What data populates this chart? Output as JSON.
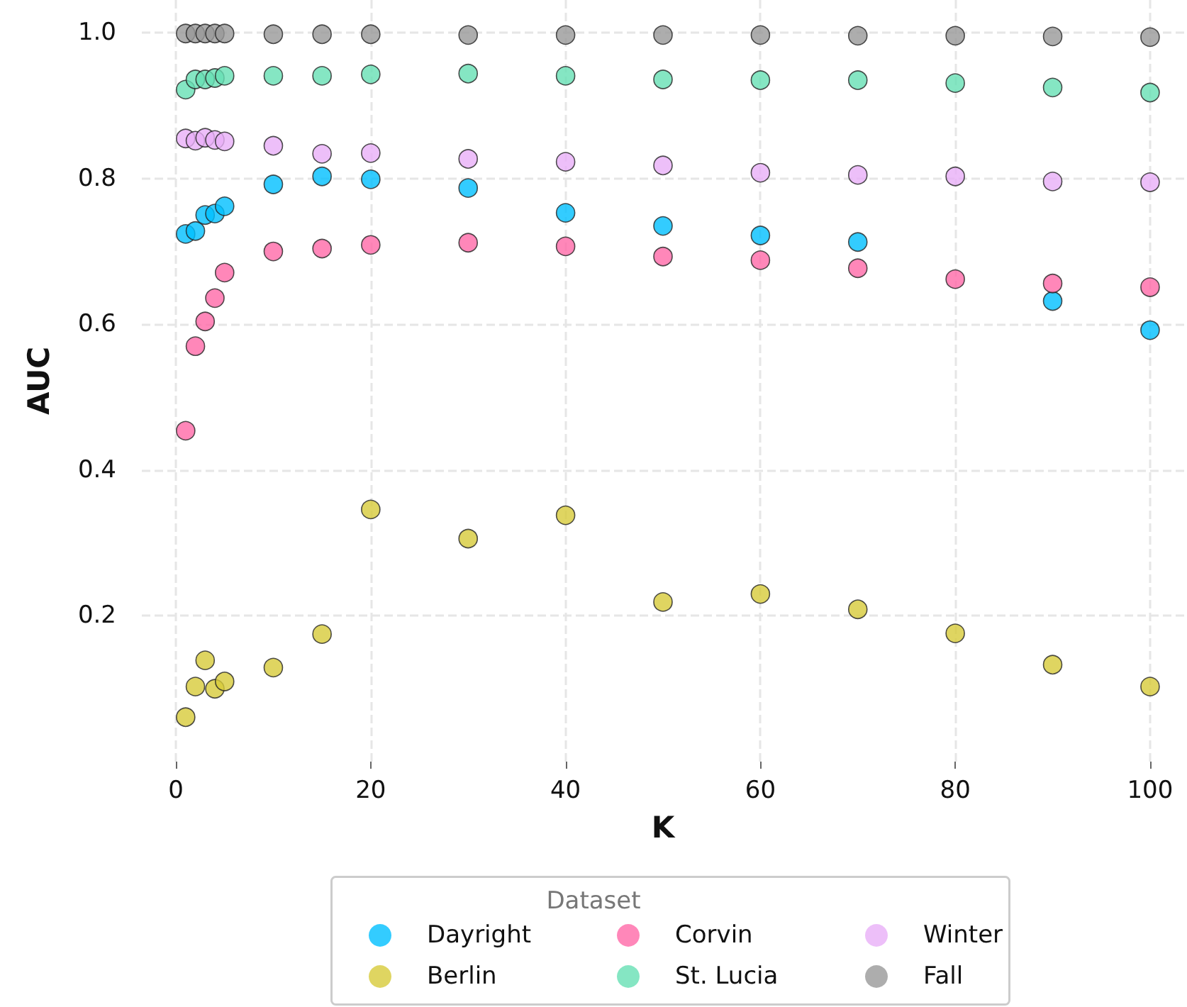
{
  "chart_data": {
    "type": "scatter",
    "xlabel": "K",
    "ylabel": "AUC",
    "legend_title": "Dataset",
    "legend": "bottom",
    "grid": true,
    "marker": "circle",
    "x": [
      1,
      2,
      3,
      4,
      5,
      10,
      15,
      20,
      30,
      40,
      50,
      60,
      70,
      80,
      90,
      100
    ],
    "xlim": [
      -3.5,
      103.5
    ],
    "xticks": [
      0,
      20,
      40,
      60,
      80,
      100
    ],
    "ylim": [
      0,
      1.045
    ],
    "yticks": [
      0.2,
      0.4,
      0.6,
      0.8,
      {
        "value": 1,
        "label": "1.0"
      }
    ],
    "series": [
      {
        "name": "Dayright",
        "color": "#00bfff",
        "values": [
          0.724,
          0.728,
          0.75,
          0.752,
          0.762,
          0.792,
          0.803,
          0.799,
          0.787,
          0.753,
          0.735,
          0.722,
          0.713,
          null,
          0.632,
          0.592
        ]
      },
      {
        "name": "Berlin",
        "color": "#d7cb3a",
        "values": [
          0.061,
          0.103,
          0.139,
          0.1,
          0.11,
          0.129,
          0.175,
          0.346,
          0.306,
          0.338,
          0.219,
          0.23,
          0.209,
          0.176,
          0.133,
          0.103
        ]
      },
      {
        "name": "Corvin",
        "color": "#ff69a8",
        "values": [
          0.454,
          0.57,
          0.604,
          0.636,
          0.671,
          0.7,
          0.704,
          0.709,
          0.712,
          0.707,
          0.693,
          0.688,
          0.677,
          0.662,
          0.656,
          0.651
        ]
      },
      {
        "name": "St. Lucia",
        "color": "#66e0b4",
        "values": [
          0.922,
          0.936,
          0.936,
          0.938,
          0.941,
          0.941,
          0.941,
          0.943,
          0.944,
          0.941,
          0.936,
          0.935,
          0.935,
          0.931,
          0.925,
          0.918
        ]
      },
      {
        "name": "Winter",
        "color": "#e9aff8",
        "values": [
          0.855,
          0.852,
          0.856,
          0.853,
          0.851,
          0.845,
          0.834,
          0.835,
          0.827,
          0.823,
          0.818,
          0.808,
          0.805,
          0.803,
          0.796,
          0.795
        ]
      },
      {
        "name": "Fall",
        "color": "#999999",
        "values": [
          0.999,
          0.999,
          0.999,
          0.999,
          0.999,
          0.998,
          0.998,
          0.998,
          0.997,
          0.997,
          0.997,
          0.997,
          0.996,
          0.996,
          0.995,
          0.994
        ]
      }
    ]
  }
}
